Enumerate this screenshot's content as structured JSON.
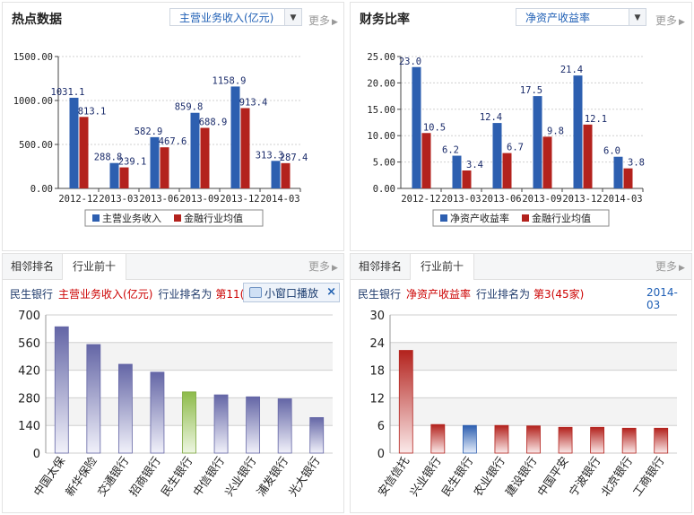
{
  "colors": {
    "blue": "#2d5fb0",
    "red": "#b3221d",
    "green": "#8dbb4a",
    "purple": "#6466a6",
    "darkred": "#b3221d"
  },
  "left_top": {
    "title": "热点数据",
    "select": "主营业务收入(亿元)",
    "more": "更多"
  },
  "right_top": {
    "title": "财务比率",
    "select": "净资产收益率",
    "more": "更多"
  },
  "left_bottom": {
    "tabs": [
      "相邻排名",
      "行业前十"
    ],
    "more": "更多",
    "stock": "民生银行",
    "metric": "主营业务收入(亿元)",
    "rank_label": "行业排名为",
    "rank": "第11(",
    "popup": "小窗口播放",
    "popup_close": "×"
  },
  "right_bottom": {
    "tabs": [
      "相邻排名",
      "行业前十"
    ],
    "more": "更多",
    "stock": "民生银行",
    "metric": "净资产收益率",
    "rank_label": "行业排名为",
    "rank": "第3(45家)",
    "date": "2014-03"
  },
  "chart_data": [
    {
      "type": "bar",
      "categories": [
        "2012-12",
        "2013-03",
        "2013-06",
        "2013-09",
        "2013-12",
        "2014-03"
      ],
      "series": [
        {
          "name": "主营业务收入",
          "values": [
            1031.1,
            288.8,
            582.9,
            859.8,
            1158.9,
            313.3
          ]
        },
        {
          "name": "金融行业均值",
          "values": [
            813.1,
            239.1,
            467.6,
            688.9,
            913.4,
            287.4
          ]
        }
      ],
      "ylim": [
        0,
        1500
      ],
      "yticks": [
        "0.00",
        "500.00",
        "1000.00",
        "1500.00"
      ],
      "legend": "bottom"
    },
    {
      "type": "bar",
      "categories": [
        "2012-12",
        "2013-03",
        "2013-06",
        "2013-09",
        "2013-12",
        "2014-03"
      ],
      "series": [
        {
          "name": "净资产收益率",
          "values": [
            23.0,
            6.2,
            12.4,
            17.5,
            21.4,
            6.0
          ]
        },
        {
          "name": "金融行业均值",
          "values": [
            10.5,
            3.4,
            6.7,
            9.8,
            12.1,
            3.8
          ]
        }
      ],
      "ylim": [
        0,
        25
      ],
      "yticks": [
        "0.00",
        "5.00",
        "10.00",
        "15.00",
        "20.00",
        "25.00"
      ],
      "legend": "bottom"
    },
    {
      "type": "bar",
      "categories": [
        "中国太保",
        "新华保险",
        "交通银行",
        "招商银行",
        "民生银行",
        "中信银行",
        "兴业银行",
        "浦发银行",
        "光大银行"
      ],
      "values": [
        640,
        550,
        450,
        410,
        310,
        295,
        285,
        275,
        180
      ],
      "highlight": "民生银行",
      "ylim": [
        0,
        700
      ],
      "yticks": [
        "0",
        "140",
        "280",
        "420",
        "560",
        "700"
      ]
    },
    {
      "type": "bar",
      "categories": [
        "安信信托",
        "兴业银行",
        "民生银行",
        "农业银行",
        "建设银行",
        "中国平安",
        "宁波银行",
        "北京银行",
        "工商银行"
      ],
      "values": [
        22.3,
        6.2,
        6.0,
        6.0,
        5.9,
        5.6,
        5.6,
        5.4,
        5.4
      ],
      "highlight": "民生银行",
      "ylim": [
        0,
        30
      ],
      "yticks": [
        "0",
        "6",
        "12",
        "18",
        "24",
        "30"
      ]
    }
  ]
}
